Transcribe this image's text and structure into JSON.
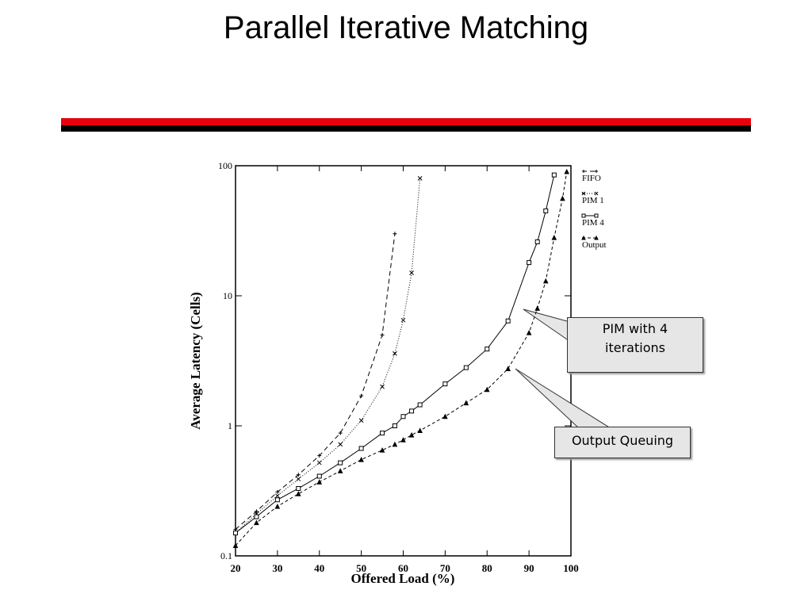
{
  "chart_data": {
    "type": "line",
    "title": "Parallel Iterative Matching",
    "xlabel": "Offered Load (%)",
    "ylabel": "Average Latency (Cells)",
    "x": [
      20,
      25,
      30,
      35,
      40,
      45,
      50,
      55,
      58,
      60,
      62,
      64,
      70,
      75,
      80,
      85,
      90,
      92,
      94,
      96,
      98,
      99
    ],
    "series": [
      {
        "name": "FIFO",
        "color": "#000000",
        "marker": "plus",
        "dash": "6 4",
        "values": [
          0.16,
          0.22,
          0.31,
          0.42,
          0.59,
          0.88,
          1.7,
          5,
          30,
          null,
          null,
          null,
          null,
          null,
          null,
          null,
          null,
          null,
          null,
          null,
          null,
          null
        ]
      },
      {
        "name": "PIM 1",
        "color": "#000000",
        "marker": "cross",
        "dash": "1 2",
        "values": [
          0.15,
          0.21,
          0.29,
          0.39,
          0.52,
          0.72,
          1.1,
          2.0,
          3.6,
          6.5,
          15,
          80,
          null,
          null,
          null,
          null,
          null,
          null,
          null,
          null,
          null,
          null
        ]
      },
      {
        "name": "PIM 4",
        "color": "#000000",
        "marker": "square",
        "dash": "",
        "values": [
          0.15,
          0.2,
          0.27,
          0.33,
          0.41,
          0.52,
          0.67,
          0.88,
          1.0,
          1.18,
          1.3,
          1.45,
          2.1,
          2.8,
          3.9,
          6.4,
          18,
          26,
          45,
          85,
          null,
          null
        ]
      },
      {
        "name": "Output",
        "color": "#000000",
        "marker": "triangle",
        "dash": "4 3",
        "values": [
          0.12,
          0.18,
          0.24,
          0.3,
          0.37,
          0.45,
          0.55,
          0.65,
          0.72,
          0.78,
          0.85,
          0.92,
          1.18,
          1.5,
          1.9,
          2.75,
          5.2,
          8,
          13,
          28,
          56,
          90
        ]
      }
    ],
    "xlim": [
      20,
      100
    ],
    "xticks": [
      20,
      30,
      40,
      50,
      60,
      70,
      80,
      90,
      100
    ],
    "ylim": [
      0.1,
      100
    ],
    "yticks": [
      0.1,
      1,
      10,
      100
    ],
    "yscale": "log",
    "grid": false,
    "legend": "right",
    "annotations": [
      "PIM with 4 iterations",
      "Output Queuing"
    ]
  }
}
